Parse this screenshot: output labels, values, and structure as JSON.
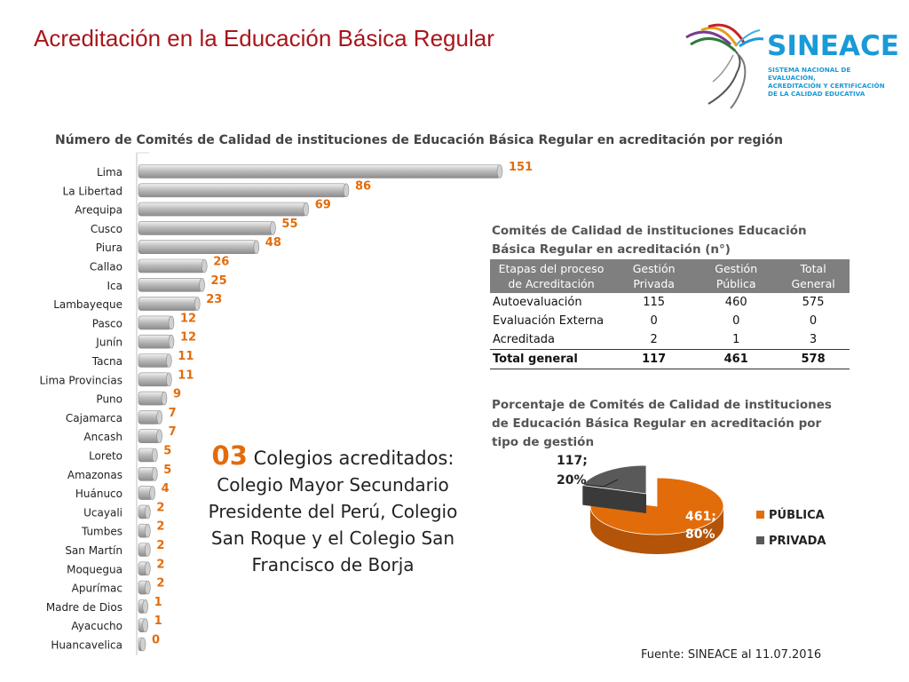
{
  "slide_title": "Acreditación en la Educación Básica Regular",
  "logo": {
    "name": "SINEACE",
    "subtitle_lines": [
      "SISTEMA NACIONAL DE EVALUACIÓN,",
      "ACREDITACIÓN Y CERTIFICACIÓN",
      "DE LA CALIDAD EDUCATIVA"
    ]
  },
  "colors": {
    "title": "#a8161c",
    "accent_orange": "#e36c0a",
    "bar_gray": "#a6a6a6",
    "header_gray": "#7f7f7f",
    "logo_blue": "#1a9ad7",
    "pie_public": "#e36c0a",
    "pie_private": "#595959"
  },
  "chart_data": [
    {
      "type": "bar",
      "orientation": "horizontal",
      "title": "Número de Comités de Calidad de instituciones de Educación Básica Regular en acreditación por región",
      "categories": [
        "Lima",
        "La Libertad",
        "Arequipa",
        "Cusco",
        "Piura",
        "Callao",
        "Ica",
        "Lambayeque",
        "Pasco",
        "Junín",
        "Tacna",
        "Lima Provincias",
        "Puno",
        "Cajamarca",
        "Ancash",
        "Loreto",
        "Amazonas",
        "Huánuco",
        "Ucayali",
        "Tumbes",
        "San Martín",
        "Moquegua",
        "Apurímac",
        "Madre de Dios",
        "Ayacucho",
        "Huancavelica"
      ],
      "values": [
        151,
        86,
        69,
        55,
        48,
        26,
        25,
        23,
        12,
        12,
        11,
        11,
        9,
        7,
        7,
        5,
        5,
        4,
        2,
        2,
        2,
        2,
        2,
        1,
        1,
        0
      ],
      "xlim": [
        0,
        151
      ]
    },
    {
      "type": "pie",
      "title": "Porcentaje de Comités de Calidad de instituciones de Educación Básica Regular en acreditación por tipo de gestión",
      "slices": [
        {
          "name": "PÚBLICA",
          "value": 461,
          "label": "461;",
          "percent": "80%"
        },
        {
          "name": "PRIVADA",
          "value": 117,
          "label": "117;",
          "percent": "20%"
        }
      ],
      "legend": "right"
    }
  ],
  "callout": {
    "number": "03",
    "lead": " Colegios acreditados:",
    "body_lines": [
      "Colegio Mayor Secundario",
      "Presidente del Perú, Colegio",
      "San Roque y el Colegio San",
      "Francisco de Borja"
    ]
  },
  "table": {
    "title": "Comités de Calidad de  instituciones Educación Básica Regular en acreditación  (n°)",
    "headers": [
      "Etapas del proceso de Acreditación",
      "Gestión Privada",
      "Gestión Pública",
      "Total General"
    ],
    "rows": [
      [
        "Autoevaluación",
        "115",
        "460",
        "575"
      ],
      [
        "Evaluación Externa",
        "0",
        "0",
        "0"
      ],
      [
        "Acreditada",
        "2",
        "1",
        "3"
      ]
    ],
    "total": [
      "Total general",
      "117",
      "461",
      "578"
    ]
  },
  "source": "Fuente: SINEACE al  11.07.2016"
}
